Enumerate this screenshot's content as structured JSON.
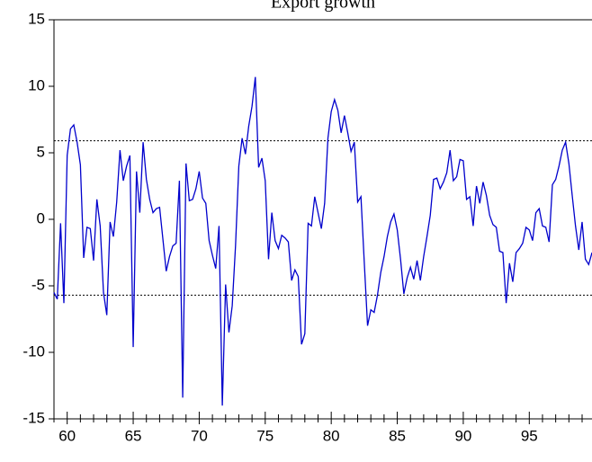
{
  "chart_data": {
    "type": "line",
    "title": "Export growth",
    "x": [
      59,
      59.25,
      59.5,
      59.75,
      60,
      60.25,
      60.5,
      60.75,
      61,
      61.25,
      61.5,
      61.75,
      62,
      62.25,
      62.5,
      62.75,
      63,
      63.25,
      63.5,
      63.75,
      64,
      64.25,
      64.5,
      64.75,
      65,
      65.25,
      65.5,
      65.75,
      66,
      66.25,
      66.5,
      66.75,
      67,
      67.25,
      67.5,
      67.75,
      68,
      68.25,
      68.5,
      68.75,
      69,
      69.25,
      69.5,
      69.75,
      70,
      70.25,
      70.5,
      70.75,
      71,
      71.25,
      71.5,
      71.75,
      72,
      72.25,
      72.5,
      72.75,
      73,
      73.25,
      73.5,
      73.75,
      74,
      74.25,
      74.5,
      74.75,
      75,
      75.25,
      75.5,
      75.75,
      76,
      76.25,
      76.5,
      76.75,
      77,
      77.25,
      77.5,
      77.75,
      78,
      78.25,
      78.5,
      78.75,
      79,
      79.25,
      79.5,
      79.75,
      80,
      80.25,
      80.5,
      80.75,
      81,
      81.25,
      81.5,
      81.75,
      82,
      82.25,
      82.5,
      82.75,
      83,
      83.25,
      83.5,
      83.75,
      84,
      84.25,
      84.5,
      84.75,
      85,
      85.25,
      85.5,
      85.75,
      86,
      86.25,
      86.5,
      86.75,
      87,
      87.25,
      87.5,
      87.75,
      88,
      88.25,
      88.5,
      88.75,
      89,
      89.25,
      89.5,
      89.75,
      90,
      90.25,
      90.5,
      90.75,
      91,
      91.25,
      91.5,
      91.75,
      92,
      92.25,
      92.5,
      92.75,
      93,
      93.25,
      93.5,
      93.75,
      94,
      94.25,
      94.5,
      94.75,
      95,
      95.25,
      95.5,
      95.75,
      96,
      96.25,
      96.5,
      96.75,
      97,
      97.25,
      97.5,
      97.75,
      98,
      98.25,
      98.5,
      98.75,
      99,
      99.25,
      99.5,
      99.75
    ],
    "series": [
      {
        "name": "Export growth",
        "color": "#0000cc",
        "values": [
          -5.5,
          -6,
          -0.3,
          -6.3,
          4.8,
          6.8,
          7.1,
          5.8,
          4.1,
          -2.9,
          -0.6,
          -0.7,
          -3.1,
          1.5,
          -0.5,
          -5.5,
          -7.2,
          -0.2,
          -1.3,
          1.3,
          5.2,
          2.9,
          4.0,
          4.8,
          -9.6,
          3.6,
          0.5,
          5.8,
          3.0,
          1.5,
          0.5,
          0.8,
          0.9,
          -1.5,
          -3.9,
          -2.8,
          -2.0,
          -1.8,
          2.9,
          -13.4,
          4.2,
          1.4,
          1.5,
          2.3,
          3.6,
          1.6,
          1.2,
          -1.6,
          -2.7,
          -3.7,
          -0.5,
          -14.0,
          -4.9,
          -8.5,
          -6.5,
          -2.0,
          4.0,
          6.1,
          4.9,
          7.0,
          8.5,
          10.7,
          3.9,
          4.6,
          2.9,
          -3.0,
          0.5,
          -1.6,
          -2.2,
          -1.2,
          -1.4,
          -1.7,
          -4.6,
          -3.8,
          -4.3,
          -9.4,
          -8.6,
          -0.3,
          -0.5,
          1.7,
          0.5,
          -0.7,
          1.2,
          6.1,
          8.1,
          9.0,
          8.2,
          6.5,
          7.8,
          6.5,
          5.1,
          5.8,
          1.3,
          1.7,
          -3.2,
          -8.0,
          -6.8,
          -7.0,
          -5.7,
          -4.0,
          -2.8,
          -1.3,
          -0.2,
          0.4,
          -0.8,
          -3.0,
          -5.6,
          -4.4,
          -3.6,
          -4.5,
          -3.1,
          -4.6,
          -2.8,
          -1.3,
          0.3,
          3.0,
          3.1,
          2.3,
          2.8,
          3.5,
          5.2,
          2.9,
          3.2,
          4.5,
          4.4,
          1.5,
          1.7,
          -0.5,
          2.5,
          1.2,
          2.8,
          1.8,
          0.3,
          -0.4,
          -0.6,
          -2.4,
          -2.5,
          -6.3,
          -3.3,
          -4.7,
          -2.5,
          -2.2,
          -1.8,
          -0.6,
          -0.8,
          -1.6,
          0.5,
          0.8,
          -0.5,
          -0.6,
          -1.7,
          2.6,
          3.0,
          4.0,
          5.2,
          5.8,
          4.2,
          1.8,
          -0.5,
          -2.3,
          -0.2,
          -3.0,
          -3.4,
          -2.5
        ]
      }
    ],
    "reference_lines": [
      5.9,
      -5.7
    ],
    "xlim": [
      59,
      99.75
    ],
    "xticks": [
      60,
      65,
      70,
      75,
      80,
      85,
      90,
      95
    ],
    "xminorticks": [
      59,
      61,
      62,
      63,
      64,
      66,
      67,
      68,
      69,
      71,
      72,
      73,
      74,
      76,
      77,
      78,
      79,
      81,
      82,
      83,
      84,
      86,
      87,
      88,
      89,
      91,
      92,
      93,
      94,
      96,
      97,
      98,
      99
    ],
    "ylim": [
      -15,
      15
    ],
    "yticks": [
      -15,
      -10,
      -5,
      0,
      5,
      10,
      15
    ]
  }
}
